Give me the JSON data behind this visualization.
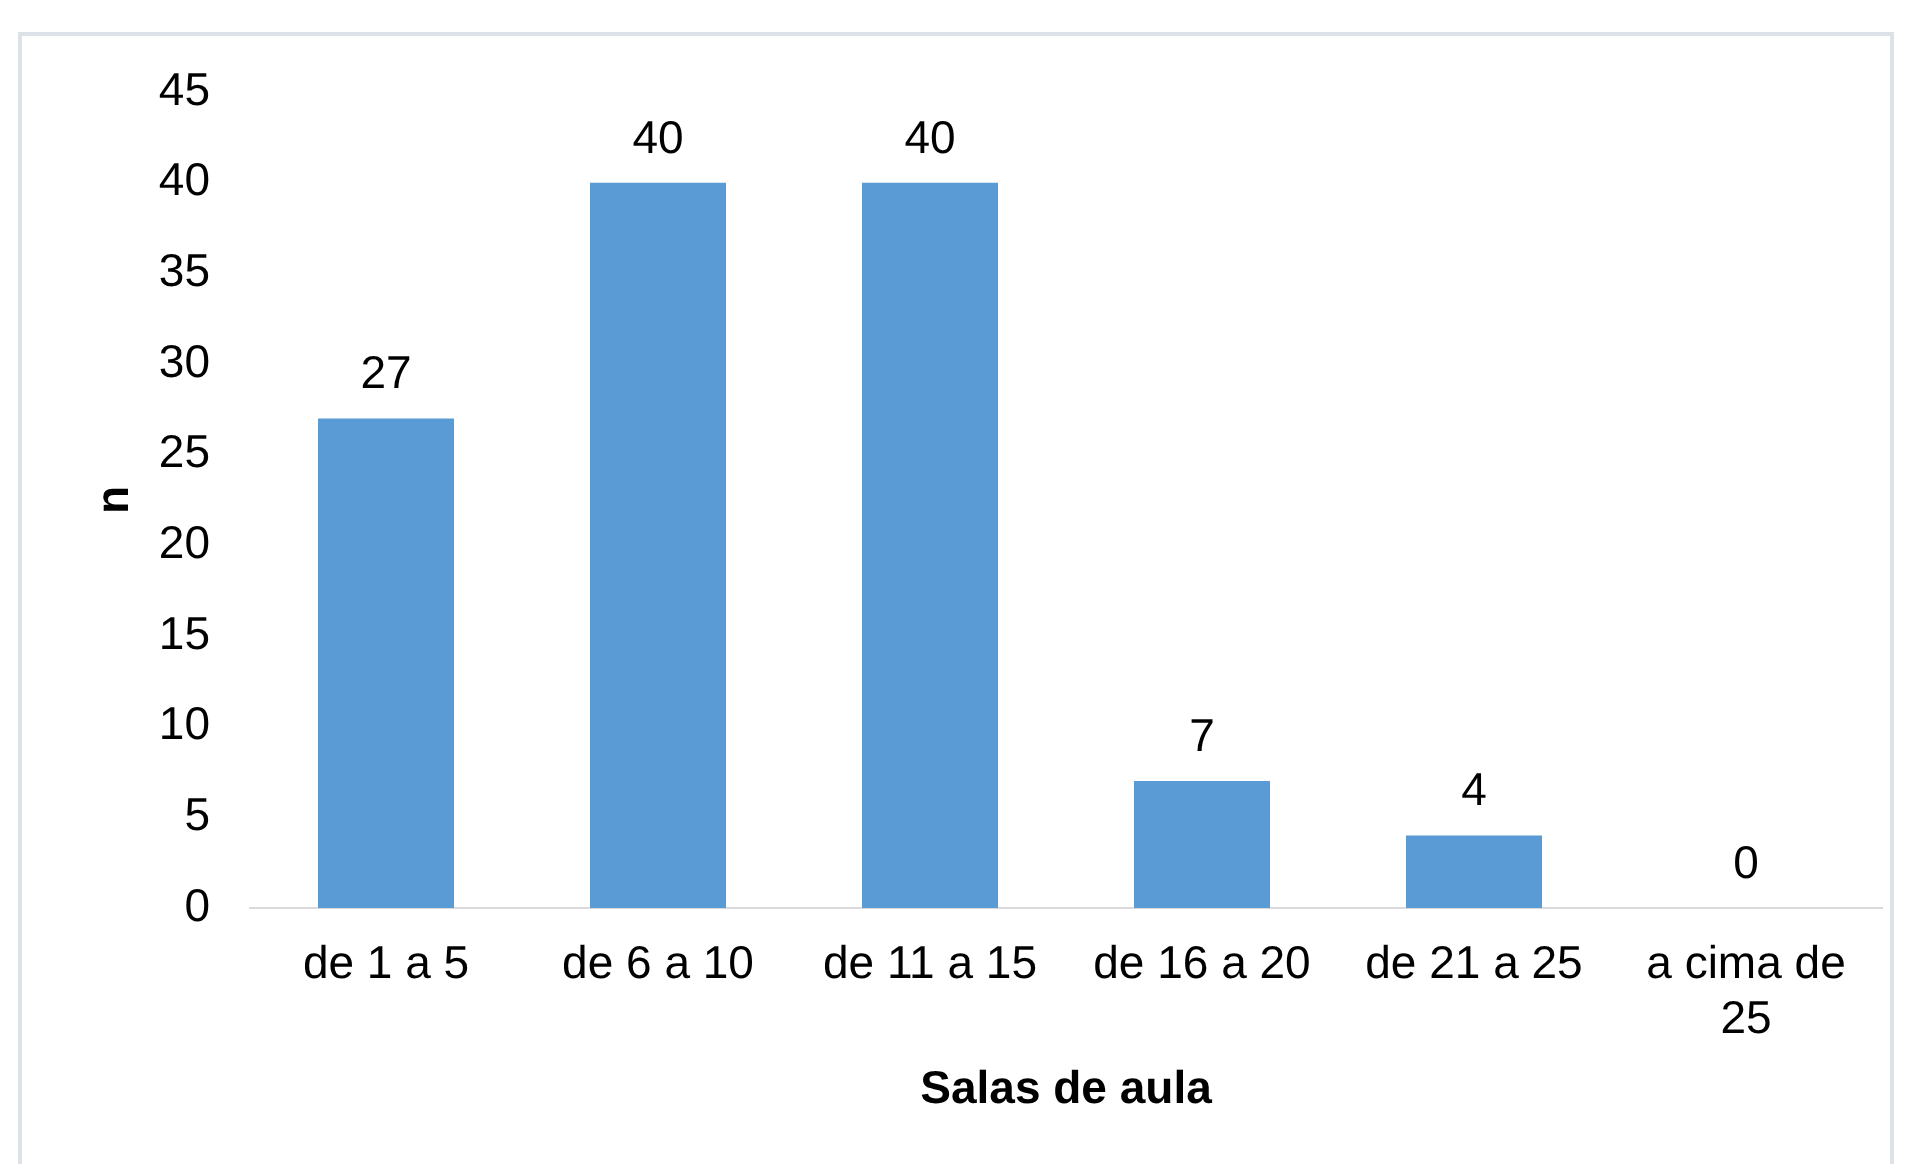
{
  "chart_data": {
    "type": "bar",
    "xlabel": "Salas de aula",
    "ylabel": "n",
    "categories": [
      "de 1 a 5",
      "de 6 a 10",
      "de 11 a 15",
      "de 16 a 20",
      "de 21 a 25",
      "a cima de 25"
    ],
    "values": [
      27,
      40,
      40,
      7,
      4,
      0
    ],
    "color": "#5b9bd5",
    "ylim": [
      0,
      45
    ],
    "yticks": [
      0,
      5,
      10,
      15,
      20,
      25,
      30,
      35,
      40,
      45
    ],
    "grid": false,
    "data_labels": true
  }
}
